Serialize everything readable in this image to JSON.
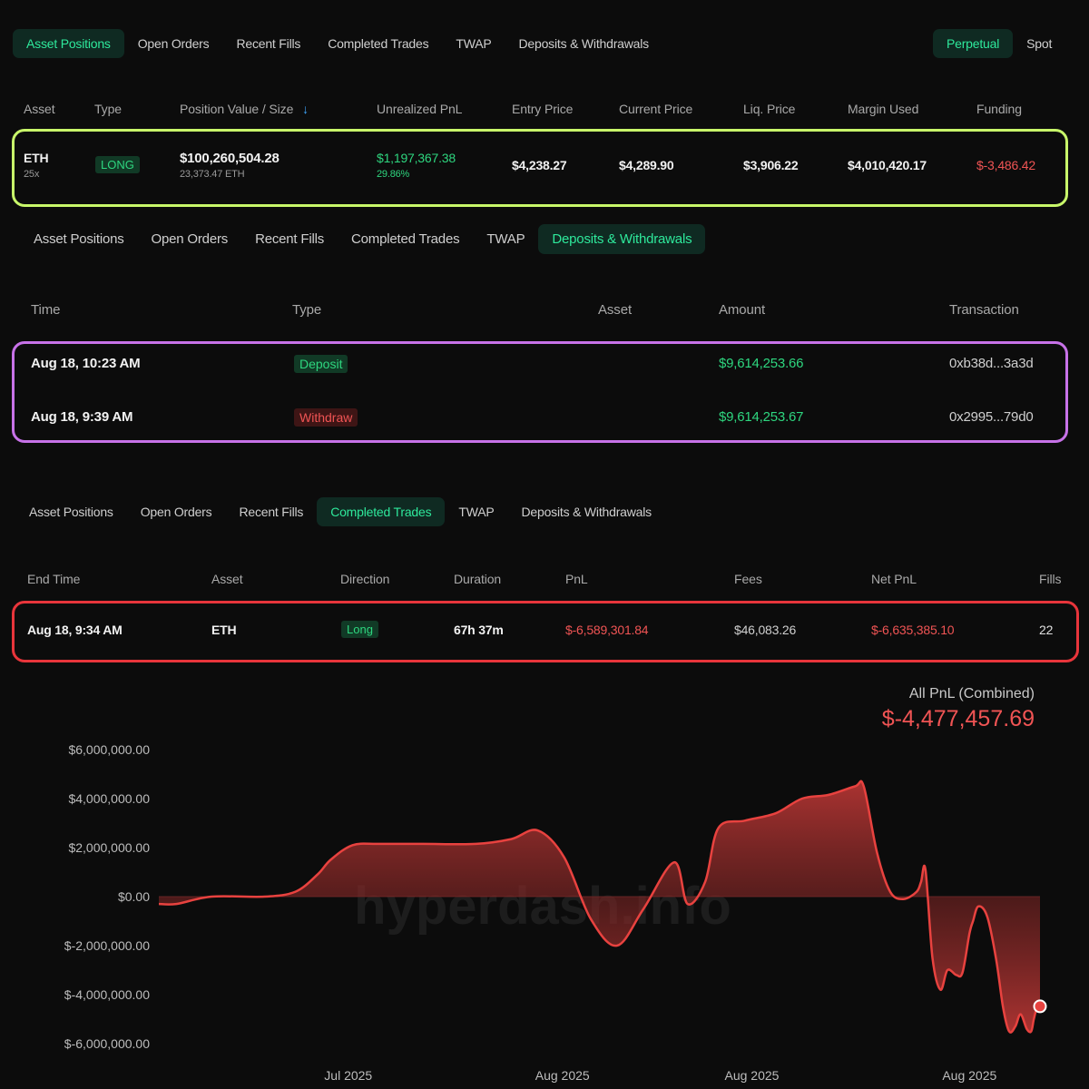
{
  "positions_panel": {
    "tabs": [
      "Asset Positions",
      "Open Orders",
      "Recent Fills",
      "Completed Trades",
      "TWAP",
      "Deposits & Withdrawals"
    ],
    "active_tab": "Asset Positions",
    "market_tabs": [
      "Perpetual",
      "Spot"
    ],
    "active_market": "Perpetual",
    "columns": [
      "Asset",
      "Type",
      "Position Value / Size",
      "Unrealized PnL",
      "Entry Price",
      "Current Price",
      "Liq. Price",
      "Margin Used",
      "Funding"
    ],
    "sort_arrow": "↓",
    "row": {
      "asset": "ETH",
      "leverage": "25x",
      "type": "LONG",
      "position_value": "$100,260,504.28",
      "size": "23,373.47 ETH",
      "unrealized_pnl": "$1,197,367.38",
      "unrealized_pnl_pct": "29.86%",
      "entry_price": "$4,238.27",
      "current_price": "$4,289.90",
      "liq_price": "$3,906.22",
      "margin_used": "$4,010,420.17",
      "funding": "$-3,486.42"
    },
    "highlight_color": "#c8f76a"
  },
  "deposits_panel": {
    "tabs": [
      "Asset Positions",
      "Open Orders",
      "Recent Fills",
      "Completed Trades",
      "TWAP",
      "Deposits & Withdrawals"
    ],
    "active_tab": "Deposits & Withdrawals",
    "columns": [
      "Time",
      "Type",
      "Asset",
      "Amount",
      "Transaction"
    ],
    "rows": [
      {
        "time": "Aug 18, 10:23 AM",
        "type": "Deposit",
        "amount": "$9,614,253.66",
        "tx": "0xb38d...3a3d"
      },
      {
        "time": "Aug 18, 9:39 AM",
        "type": "Withdraw",
        "amount": "$9,614,253.67",
        "tx": "0x2995...79d0"
      }
    ],
    "highlight_color": "#c772e8"
  },
  "trades_panel": {
    "tabs": [
      "Asset Positions",
      "Open Orders",
      "Recent Fills",
      "Completed Trades",
      "TWAP",
      "Deposits & Withdrawals"
    ],
    "active_tab": "Completed Trades",
    "columns": [
      "End Time",
      "Asset",
      "Direction",
      "Duration",
      "PnL",
      "Fees",
      "Net PnL",
      "Fills"
    ],
    "row": {
      "end_time": "Aug 18, 9:34 AM",
      "asset": "ETH",
      "direction": "Long",
      "duration": "67h 37m",
      "pnl": "$-6,589,301.84",
      "fees": "$46,083.26",
      "net_pnl": "$-6,635,385.10",
      "fills": "22"
    },
    "highlight_color": "#e8353b"
  },
  "chart": {
    "title": "All PnL (Combined)",
    "total": "$-4,477,457.69",
    "watermark": "hyperdash.info"
  },
  "colors": {
    "background": "#0c0c0c",
    "accent_green": "#2ed67f",
    "accent_red": "#f05454",
    "chart_line": "#e8423f"
  },
  "chart_data": {
    "type": "area",
    "title": "All PnL (Combined)",
    "xlabel": "",
    "ylabel": "",
    "x_ticks": [
      "Jul 2025",
      "Aug 2025",
      "Aug 2025",
      "Aug 2025"
    ],
    "x_tick_positions": [
      0.215,
      0.458,
      0.673,
      0.92
    ],
    "y_ticks": [
      "$6,000,000.00",
      "$4,000,000.00",
      "$2,000,000.00",
      "$0.00",
      "$-2,000,000.00",
      "$-4,000,000.00",
      "$-6,000,000.00"
    ],
    "ylim": [
      -6000000,
      6000000
    ],
    "grid": false,
    "series": [
      {
        "x": [
          0.0,
          0.02,
          0.06,
          0.12,
          0.155,
          0.18,
          0.195,
          0.22,
          0.25,
          0.3,
          0.36,
          0.4,
          0.43,
          0.46,
          0.49,
          0.52,
          0.55,
          0.585,
          0.6,
          0.62,
          0.635,
          0.665,
          0.7,
          0.73,
          0.76,
          0.79,
          0.8,
          0.815,
          0.83,
          0.845,
          0.86,
          0.865,
          0.87,
          0.878,
          0.887,
          0.895,
          0.905,
          0.912,
          0.92,
          0.924,
          0.93,
          0.94,
          0.95,
          0.958,
          0.965,
          0.972,
          0.978,
          0.985,
          0.99,
          0.993,
          0.996,
          1.0
        ],
        "values": [
          -300000,
          -300000,
          0,
          0,
          200000,
          900000,
          1500000,
          2100000,
          2150000,
          2150000,
          2150000,
          2350000,
          2700000,
          1600000,
          -900000,
          -2000000,
          -500000,
          1400000,
          -300000,
          600000,
          2800000,
          3100000,
          3400000,
          4000000,
          4150000,
          4500000,
          4500000,
          1800000,
          200000,
          -100000,
          200000,
          600000,
          1100000,
          -2500000,
          -3800000,
          -3000000,
          -3200000,
          -3100000,
          -1500000,
          -1000000,
          -400000,
          -800000,
          -2500000,
          -4500000,
          -5500000,
          -5300000,
          -4800000,
          -5400000,
          -5500000,
          -5000000,
          -4600000,
          -4477457.69
        ]
      }
    ]
  }
}
